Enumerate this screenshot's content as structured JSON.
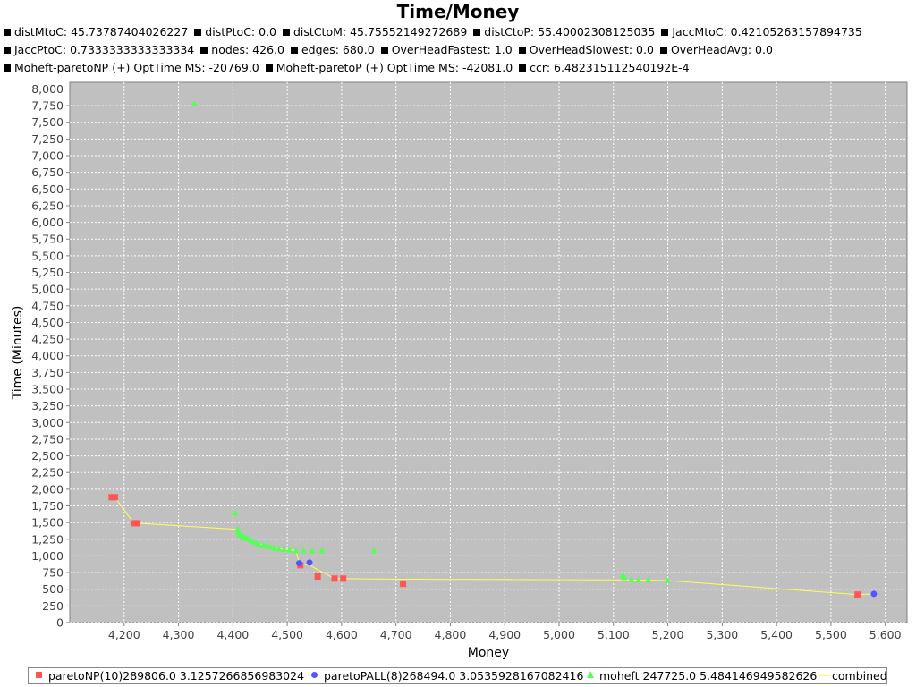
{
  "chart_data": {
    "type": "scatter",
    "title": "Time/Money",
    "subtitles": [
      [
        "distMtoC: 45.73787404026227",
        "distPtoC: 0.0",
        "distCtoM: 45.75552149272689",
        "distCtoP: 55.40002308125035",
        "JaccMtoC: 0.42105263157894735"
      ],
      [
        "JaccPtoC: 0.7333333333333334",
        "nodes: 426.0",
        "edges: 680.0",
        "OverHeadFastest: 1.0",
        "OverHeadSlowest: 0.0",
        "OverHeadAvg: 0.0"
      ],
      [
        "Moheft-paretoNP (+) OptTime MS: -20769.0",
        "Moheft-paretoP (+) OptTime MS: -42081.0",
        "ccr: 6.482315112540192E-4"
      ]
    ],
    "xlabel": "Money",
    "ylabel": "Time (Minutes)",
    "xlim": [
      4100,
      5640
    ],
    "ylim": [
      0,
      8100
    ],
    "x_ticks": [
      4200,
      4300,
      4400,
      4500,
      4600,
      4700,
      4800,
      4900,
      5000,
      5100,
      5200,
      5300,
      5400,
      5500,
      5600
    ],
    "y_ticks": [
      0,
      250,
      500,
      750,
      1000,
      1250,
      1500,
      1750,
      2000,
      2250,
      2500,
      2750,
      3000,
      3250,
      3500,
      3750,
      4000,
      4250,
      4500,
      4750,
      5000,
      5250,
      5500,
      5750,
      6000,
      6250,
      6500,
      6750,
      7000,
      7250,
      7500,
      7750,
      8000
    ],
    "grid": true,
    "legend_position": "bottom",
    "series": [
      {
        "name": "paretoNP(10)289806.0 3.1257266856983024",
        "marker": "square",
        "color": "#ff5555",
        "points": [
          [
            4177,
            1880
          ],
          [
            4183,
            1880
          ],
          [
            4218,
            1490
          ],
          [
            4224,
            1490
          ],
          [
            4524,
            860
          ],
          [
            4556,
            690
          ],
          [
            4587,
            660
          ],
          [
            4603,
            660
          ],
          [
            4713,
            580
          ],
          [
            5549,
            420
          ]
        ]
      },
      {
        "name": "paretoPALL(8)268494.0 3.0535928167082416",
        "marker": "circle",
        "color": "#5555ff",
        "points": [
          [
            4522,
            890
          ],
          [
            4541,
            900
          ],
          [
            5579,
            430
          ]
        ]
      },
      {
        "name": "moheft 247725.0 5.484146949582626",
        "marker": "triangle",
        "color": "#55ff55",
        "points": [
          [
            4329,
            7780
          ],
          [
            4404,
            1640
          ],
          [
            4409,
            1400
          ],
          [
            4410,
            1360
          ],
          [
            4412,
            1330
          ],
          [
            4414,
            1310
          ],
          [
            4418,
            1290
          ],
          [
            4422,
            1270
          ],
          [
            4426,
            1260
          ],
          [
            4430,
            1250
          ],
          [
            4436,
            1220
          ],
          [
            4442,
            1200
          ],
          [
            4448,
            1180
          ],
          [
            4456,
            1160
          ],
          [
            4462,
            1150
          ],
          [
            4468,
            1140
          ],
          [
            4476,
            1120
          ],
          [
            4484,
            1110
          ],
          [
            4494,
            1100
          ],
          [
            4504,
            1090
          ],
          [
            4516,
            1080
          ],
          [
            4530,
            1080
          ],
          [
            4546,
            1080
          ],
          [
            4564,
            1080
          ],
          [
            4660,
            1080
          ],
          [
            5117,
            710
          ],
          [
            5120,
            680
          ],
          [
            5133,
            650
          ],
          [
            5146,
            640
          ],
          [
            5164,
            640
          ],
          [
            5199,
            630
          ]
        ]
      },
      {
        "name": "combined",
        "type": "line",
        "color": "#ffff55",
        "points": [
          [
            4177,
            1880
          ],
          [
            4183,
            1880
          ],
          [
            4218,
            1490
          ],
          [
            4224,
            1490
          ],
          [
            4404,
            1400
          ],
          [
            4409,
            1360
          ],
          [
            4412,
            1330
          ],
          [
            4418,
            1290
          ],
          [
            4426,
            1260
          ],
          [
            4436,
            1220
          ],
          [
            4448,
            1180
          ],
          [
            4462,
            1150
          ],
          [
            4476,
            1120
          ],
          [
            4494,
            1100
          ],
          [
            4516,
            1080
          ],
          [
            4522,
            890
          ],
          [
            4541,
            860
          ],
          [
            4587,
            660
          ],
          [
            4713,
            650
          ],
          [
            5117,
            640
          ],
          [
            5199,
            630
          ],
          [
            5549,
            420
          ],
          [
            5579,
            430
          ]
        ]
      }
    ]
  }
}
